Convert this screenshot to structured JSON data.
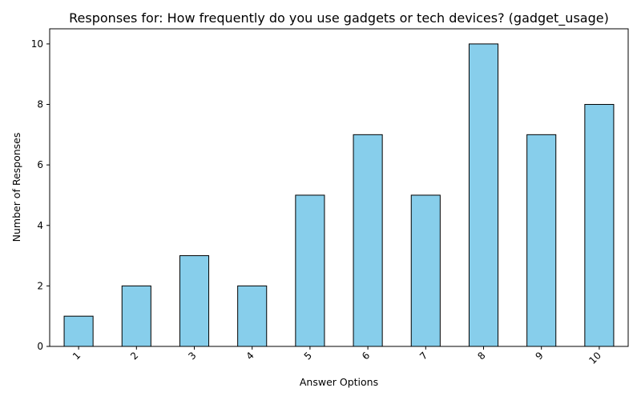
{
  "chart_data": {
    "type": "bar",
    "title": "Responses for: How frequently do you use gadgets or tech devices? (gadget_usage)",
    "xlabel": "Answer Options",
    "ylabel": "Number of Responses",
    "categories": [
      "1",
      "2",
      "3",
      "4",
      "5",
      "6",
      "7",
      "8",
      "9",
      "10"
    ],
    "values": [
      1,
      2,
      3,
      2,
      5,
      7,
      5,
      10,
      7,
      8
    ],
    "ylim": [
      0,
      10.5
    ],
    "yticks": [
      0,
      2,
      4,
      6,
      8,
      10
    ],
    "grid": false,
    "bar_color": "#87CEEB",
    "edge_color": "#000000"
  }
}
